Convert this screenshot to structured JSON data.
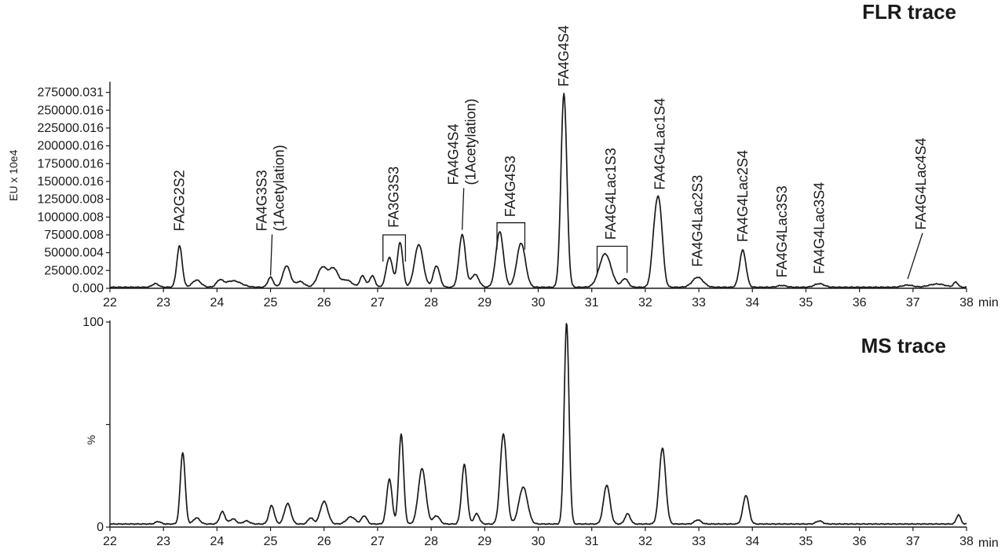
{
  "colors": {
    "trace": "#1a1a1a",
    "background": "#ffffff"
  },
  "chart_data": [
    {
      "type": "line",
      "title": "FLR trace",
      "ylabel": "EU x 10e4",
      "x_unit": "min",
      "xlim": [
        22,
        38
      ],
      "ylim": [
        0,
        290000
      ],
      "x_ticks": [
        "22",
        "23",
        "24",
        "25",
        "26",
        "27",
        "28",
        "29",
        "30",
        "31",
        "32",
        "33",
        "34",
        "35",
        "36",
        "37",
        "38"
      ],
      "y_ticks": [
        {
          "value": 0,
          "label": "0.000"
        },
        {
          "value": 25000.002,
          "label": "25000.002"
        },
        {
          "value": 50000.004,
          "label": "50000.004"
        },
        {
          "value": 75000.008,
          "label": "75000.008"
        },
        {
          "value": 100000.008,
          "label": "100000.008"
        },
        {
          "value": 125000.008,
          "label": "125000.008"
        },
        {
          "value": 150000.016,
          "label": "150000.016"
        },
        {
          "value": 175000.016,
          "label": "175000.016"
        },
        {
          "value": 200000.016,
          "label": "200000.016"
        },
        {
          "value": 225000.016,
          "label": "225000.016"
        },
        {
          "value": 250000.016,
          "label": "250000.016"
        },
        {
          "value": 275000.031,
          "label": "275000.031"
        }
      ],
      "grid": false,
      "baseline": 1500,
      "peaks": [
        {
          "x": 22.85,
          "h": 5000,
          "w": 0.06
        },
        {
          "x": 23.3,
          "h": 58000,
          "w": 0.05
        },
        {
          "x": 23.62,
          "h": 10000,
          "w": 0.08
        },
        {
          "x": 24.05,
          "h": 8500,
          "w": 0.06
        },
        {
          "x": 24.3,
          "h": 9000,
          "w": 0.15
        },
        {
          "x": 25.0,
          "h": 14000,
          "w": 0.05
        },
        {
          "x": 25.3,
          "h": 30000,
          "w": 0.07
        },
        {
          "x": 25.55,
          "h": 8000,
          "w": 0.08
        },
        {
          "x": 25.97,
          "h": 28000,
          "w": 0.09
        },
        {
          "x": 26.18,
          "h": 25000,
          "w": 0.08
        },
        {
          "x": 26.42,
          "h": 10000,
          "w": 0.1
        },
        {
          "x": 26.72,
          "h": 16000,
          "w": 0.05
        },
        {
          "x": 26.9,
          "h": 16000,
          "w": 0.05
        },
        {
          "x": 27.22,
          "h": 42000,
          "w": 0.06
        },
        {
          "x": 27.42,
          "h": 63000,
          "w": 0.05
        },
        {
          "x": 27.77,
          "h": 60000,
          "w": 0.08
        },
        {
          "x": 28.1,
          "h": 30000,
          "w": 0.06
        },
        {
          "x": 28.58,
          "h": 74000,
          "w": 0.06
        },
        {
          "x": 28.82,
          "h": 18000,
          "w": 0.07
        },
        {
          "x": 29.28,
          "h": 78000,
          "w": 0.07
        },
        {
          "x": 29.68,
          "h": 62000,
          "w": 0.08
        },
        {
          "x": 30.48,
          "h": 272000,
          "w": 0.055
        },
        {
          "x": 31.25,
          "h": 47000,
          "w": 0.11
        },
        {
          "x": 31.62,
          "h": 12000,
          "w": 0.06
        },
        {
          "x": 32.18,
          "h": 72000,
          "w": 0.06
        },
        {
          "x": 32.27,
          "h": 95000,
          "w": 0.06
        },
        {
          "x": 32.98,
          "h": 14000,
          "w": 0.1
        },
        {
          "x": 33.82,
          "h": 52000,
          "w": 0.06
        },
        {
          "x": 34.55,
          "h": 2500,
          "w": 0.08
        },
        {
          "x": 35.25,
          "h": 5000,
          "w": 0.09
        },
        {
          "x": 36.9,
          "h": 3000,
          "w": 0.1
        },
        {
          "x": 37.45,
          "h": 4500,
          "w": 0.15
        },
        {
          "x": 37.8,
          "h": 7000,
          "w": 0.04
        }
      ],
      "annotations": [
        {
          "lines": [
            "FA2G2S2"
          ],
          "x": 23.3,
          "y": 80000
        },
        {
          "lines": [
            "FA4G3S3",
            "(1Acetylation)"
          ],
          "x": 25.0,
          "y": 80000,
          "leader_to": [
            25.0,
            18000
          ]
        },
        {
          "lines": [
            "FA3G3S3"
          ],
          "x": 27.3,
          "y": 85000,
          "bracket": [
            27.1,
            27.52,
            75000
          ]
        },
        {
          "lines": [
            "FA4G4S4",
            "(1Acetylation)"
          ],
          "x": 28.58,
          "y": 145000,
          "leader_to": [
            28.58,
            82000
          ]
        },
        {
          "lines": [
            "FA4G4S3"
          ],
          "x": 29.48,
          "y": 100000,
          "bracket": [
            29.23,
            29.75,
            92000
          ]
        },
        {
          "lines": [
            "FA4G4S4"
          ],
          "x": 30.48,
          "y": 283000
        },
        {
          "lines": [
            "FA4G4Lac1S3"
          ],
          "x": 31.36,
          "y": 68000,
          "bracket": [
            31.1,
            31.66,
            59000
          ]
        },
        {
          "lines": [
            "FA4G4Lac1S4"
          ],
          "x": 32.27,
          "y": 138000
        },
        {
          "lines": [
            "FA4G4Lac2S3"
          ],
          "x": 32.98,
          "y": 30000
        },
        {
          "lines": [
            "FA4G4Lac2S4"
          ],
          "x": 33.82,
          "y": 65000
        },
        {
          "lines": [
            "FA4G4Lac3S3"
          ],
          "x": 34.55,
          "y": 15000
        },
        {
          "lines": [
            "FA4G4Lac3S4"
          ],
          "x": 35.25,
          "y": 20000
        },
        {
          "lines": [
            "FA4G4Lac4S4"
          ],
          "x": 37.15,
          "y": 82000,
          "leader_to": [
            36.9,
            13000
          ]
        }
      ]
    },
    {
      "type": "line",
      "title": "MS trace",
      "ylabel": "%",
      "x_unit": "min",
      "xlim": [
        22,
        38
      ],
      "ylim": [
        0,
        100
      ],
      "x_ticks": [
        "22",
        "23",
        "24",
        "25",
        "26",
        "27",
        "28",
        "29",
        "30",
        "31",
        "32",
        "33",
        "34",
        "35",
        "36",
        "37",
        "38"
      ],
      "y_ticks": [
        {
          "value": 0,
          "label": "0"
        },
        {
          "value": 50,
          "label": ""
        },
        {
          "value": 100,
          "label": "100"
        }
      ],
      "grid": false,
      "baseline": 1.5,
      "peaks": [
        {
          "x": 22.9,
          "h": 1.2,
          "w": 0.05
        },
        {
          "x": 23.36,
          "h": 35,
          "w": 0.045
        },
        {
          "x": 23.62,
          "h": 3,
          "w": 0.06
        },
        {
          "x": 24.1,
          "h": 6,
          "w": 0.05
        },
        {
          "x": 24.3,
          "h": 2.5,
          "w": 0.06
        },
        {
          "x": 24.55,
          "h": 1.5,
          "w": 0.06
        },
        {
          "x": 25.02,
          "h": 9,
          "w": 0.05
        },
        {
          "x": 25.32,
          "h": 10,
          "w": 0.06
        },
        {
          "x": 25.75,
          "h": 3,
          "w": 0.05
        },
        {
          "x": 26.0,
          "h": 11,
          "w": 0.07
        },
        {
          "x": 26.5,
          "h": 3.5,
          "w": 0.08
        },
        {
          "x": 26.75,
          "h": 4,
          "w": 0.05
        },
        {
          "x": 27.22,
          "h": 22,
          "w": 0.05
        },
        {
          "x": 27.44,
          "h": 44,
          "w": 0.045
        },
        {
          "x": 27.83,
          "h": 27,
          "w": 0.07
        },
        {
          "x": 28.1,
          "h": 4,
          "w": 0.06
        },
        {
          "x": 28.62,
          "h": 29,
          "w": 0.05
        },
        {
          "x": 28.85,
          "h": 5,
          "w": 0.05
        },
        {
          "x": 29.35,
          "h": 44,
          "w": 0.06
        },
        {
          "x": 29.72,
          "h": 18,
          "w": 0.08
        },
        {
          "x": 30.53,
          "h": 98,
          "w": 0.045
        },
        {
          "x": 31.28,
          "h": 19,
          "w": 0.06
        },
        {
          "x": 31.67,
          "h": 5,
          "w": 0.05
        },
        {
          "x": 32.32,
          "h": 37,
          "w": 0.06
        },
        {
          "x": 32.98,
          "h": 2,
          "w": 0.06
        },
        {
          "x": 33.88,
          "h": 14,
          "w": 0.055
        },
        {
          "x": 35.25,
          "h": 1.5,
          "w": 0.06
        },
        {
          "x": 37.85,
          "h": 4.5,
          "w": 0.04
        }
      ],
      "annotations": []
    }
  ]
}
